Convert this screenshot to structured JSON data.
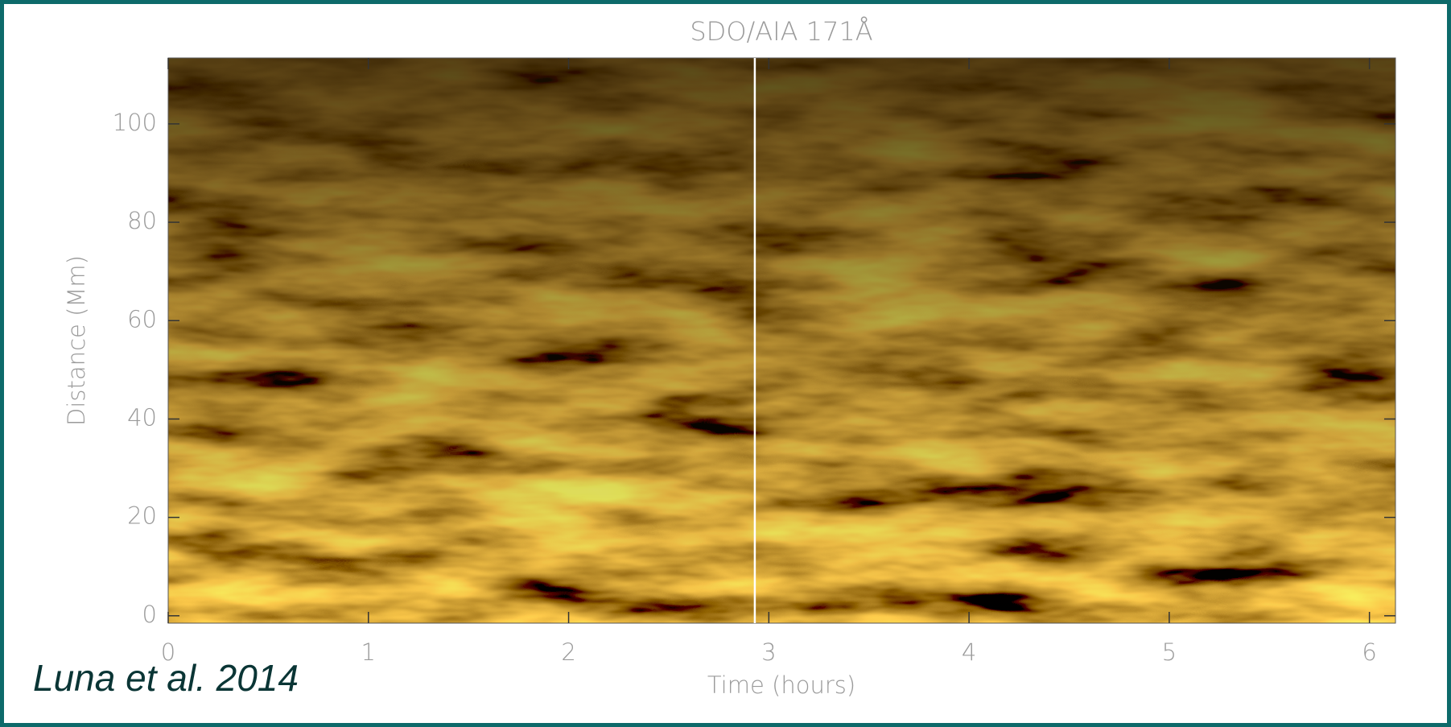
{
  "chart_data": {
    "type": "image",
    "title": "SDO/AIA 171Å",
    "x_label": "Time (hours)",
    "y_label": "Distance (Mm)",
    "xlim": [
      0,
      6.13
    ],
    "xticks": [
      0,
      1,
      2,
      3,
      4,
      5,
      6
    ],
    "ylim": [
      -1.5,
      113.4
    ],
    "yticks": [
      0,
      20,
      40,
      60,
      80,
      100
    ],
    "vlines": [
      2.93
    ],
    "vline_color": "#ffffff",
    "citation": "Luna et al. 2014"
  }
}
